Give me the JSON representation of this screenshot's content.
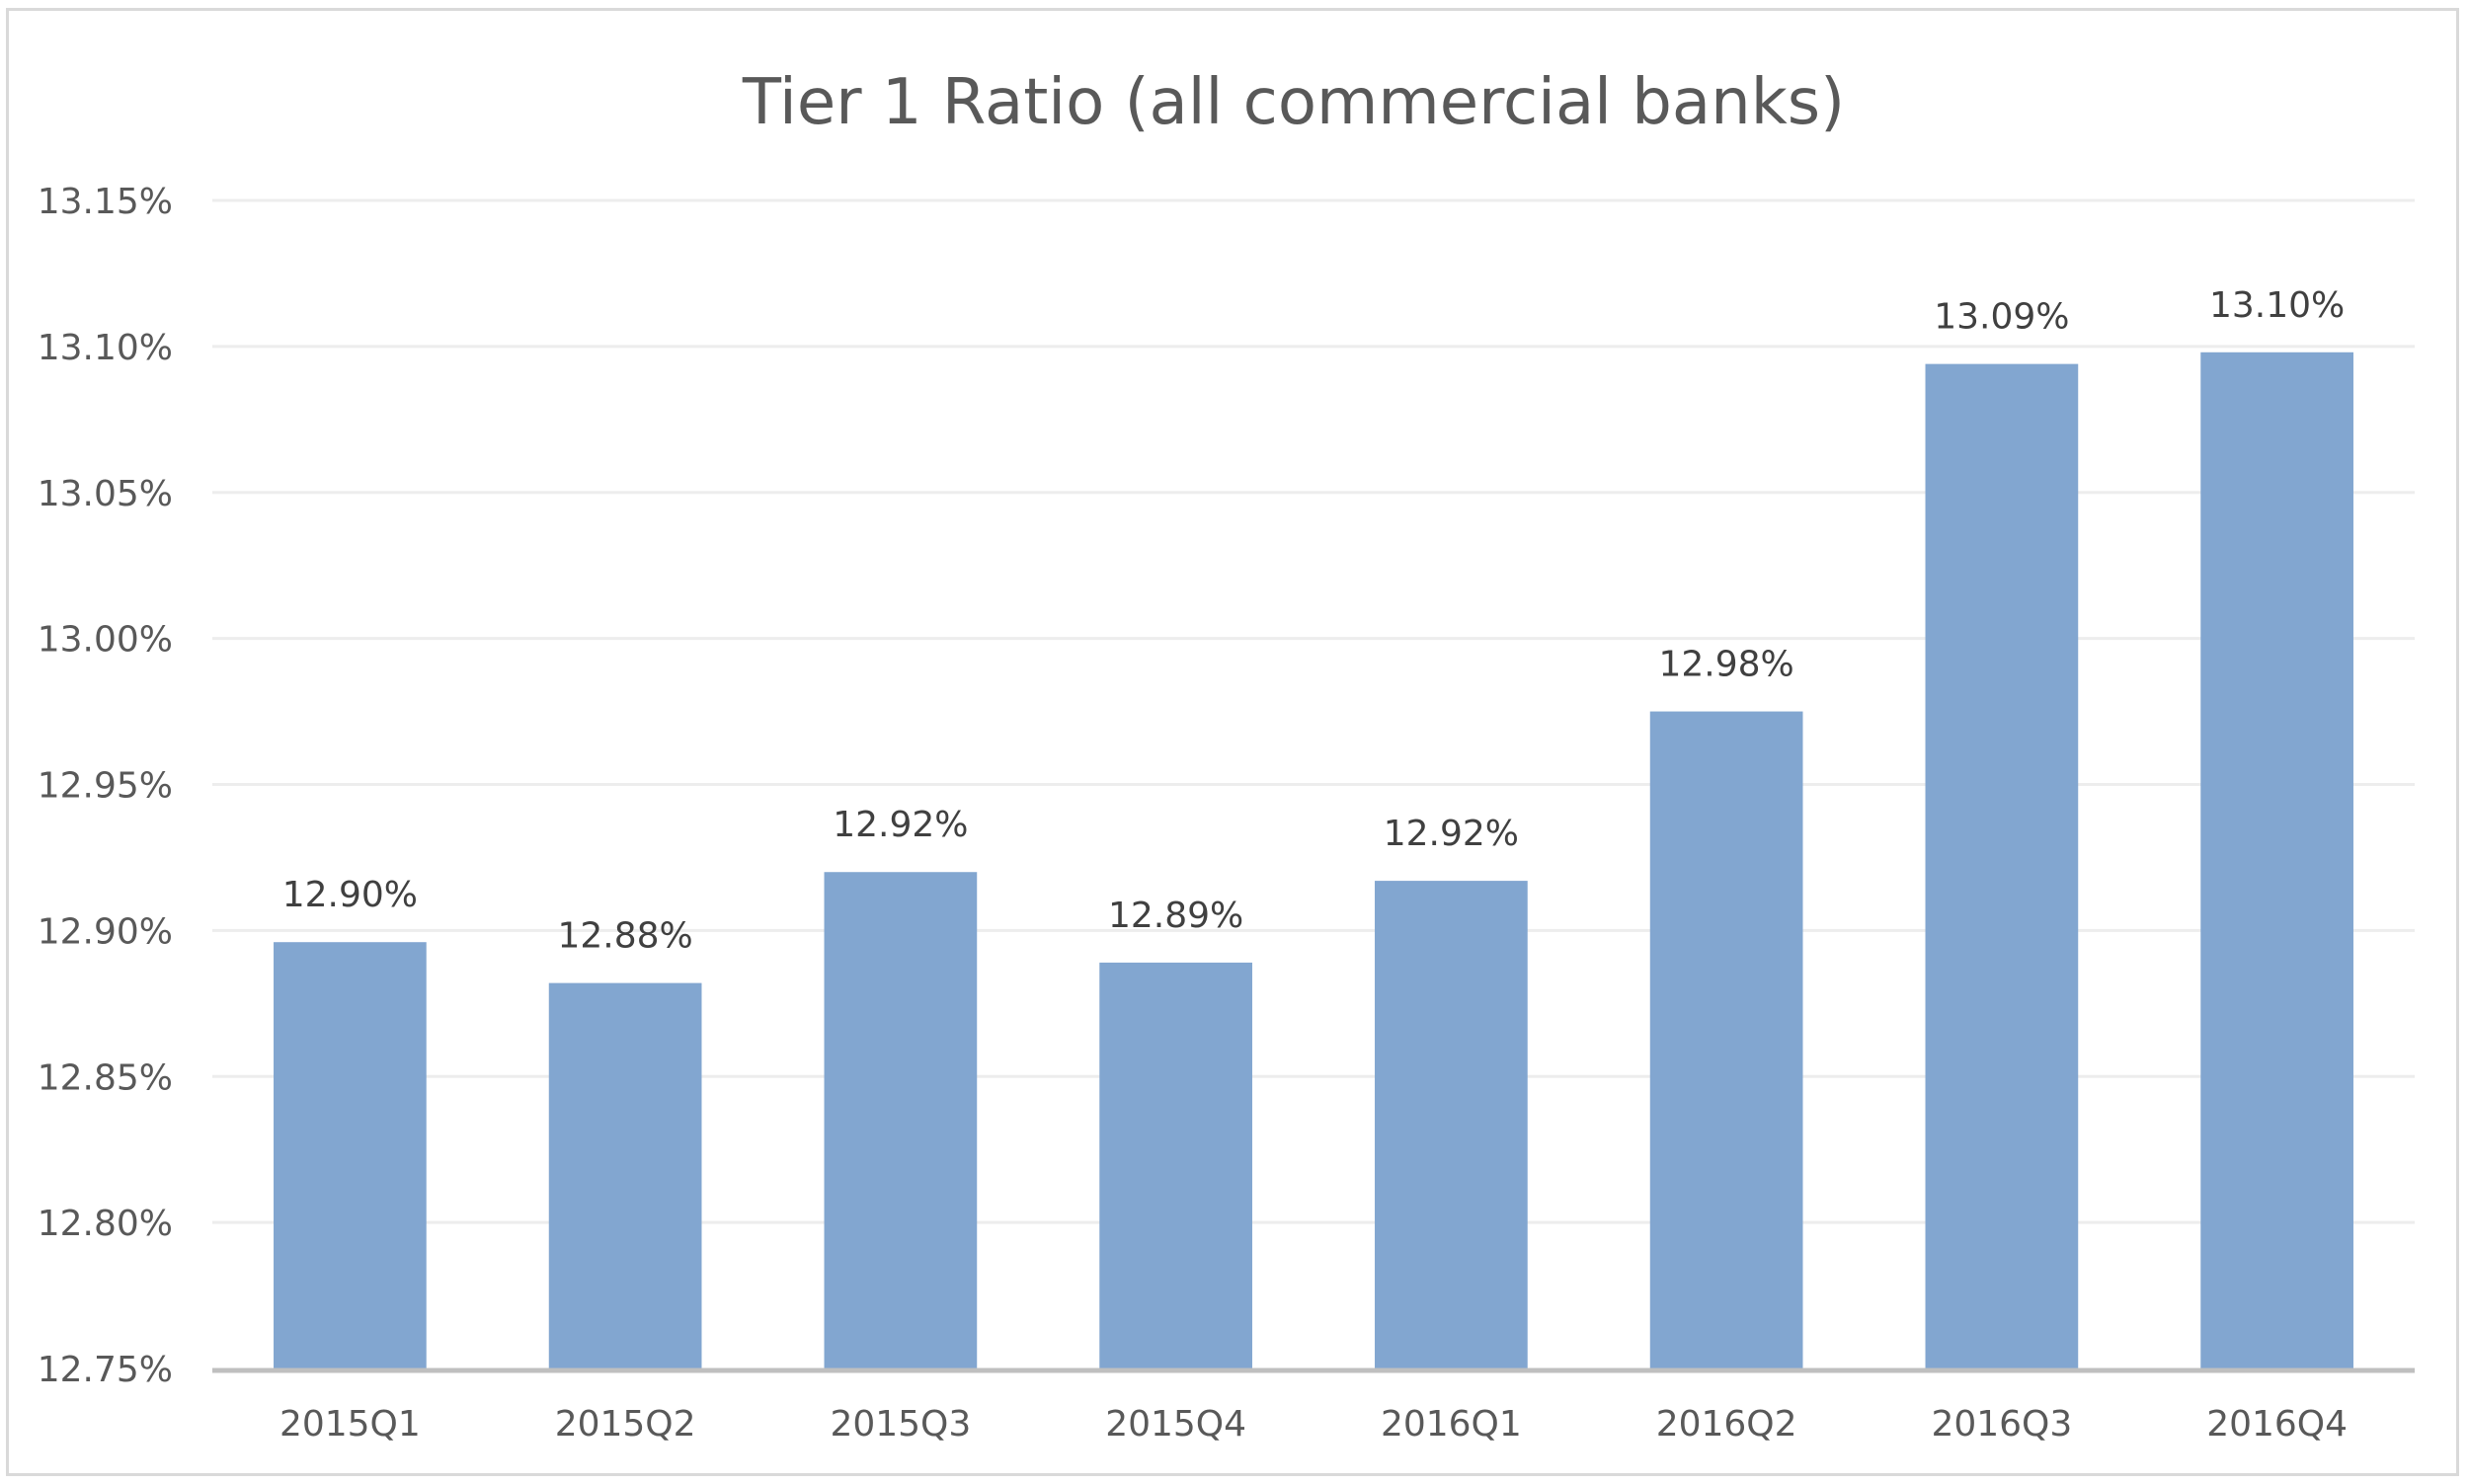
{
  "chart_data": {
    "type": "bar",
    "title": "Tier 1 Ratio (all commercial banks)",
    "xlabel": "",
    "ylabel": "",
    "categories": [
      "2015Q1",
      "2015Q2",
      "2015Q3",
      "2015Q4",
      "2016Q1",
      "2016Q2",
      "2016Q3",
      "2016Q4"
    ],
    "series": [
      {
        "values": [
          12.896,
          12.882,
          12.92,
          12.889,
          12.917,
          12.975,
          13.094,
          13.098
        ],
        "data_labels": [
          "12.90%",
          "12.88%",
          "12.92%",
          "12.89%",
          "12.92%",
          "12.98%",
          "13.09%",
          "13.10%"
        ],
        "color": "#82a6d0"
      }
    ],
    "ylim": [
      12.75,
      13.15
    ],
    "yticks": [
      12.75,
      12.8,
      12.85,
      12.9,
      12.95,
      13.0,
      13.05,
      13.1,
      13.15
    ],
    "ytick_labels": [
      "12.75%",
      "12.80%",
      "12.85%",
      "12.90%",
      "12.95%",
      "13.00%",
      "13.05%",
      "13.10%",
      "13.15%"
    ],
    "grid": true,
    "legend": "none",
    "colors": {
      "bar": "#82a6d0",
      "grid": "#ededed",
      "axis": "#bfbfbf",
      "text": "#595959",
      "label": "#404040"
    }
  }
}
